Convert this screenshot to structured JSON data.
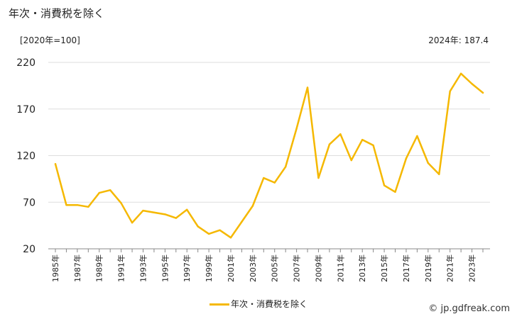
{
  "title": "年次・消費税を除く",
  "unit_label": "[2020年=100]",
  "latest_label": "2024年: 187.4",
  "credit": "© jp.gdfreak.com",
  "colors": {
    "line": "#f5b800",
    "grid": "#dddddd",
    "axis": "#888888"
  },
  "chart_data": {
    "type": "line",
    "title": "年次・消費税を除く",
    "xlabel": "",
    "ylabel": "[2020年=100]",
    "ylim": [
      20,
      220
    ],
    "yticks": [
      20,
      70,
      120,
      170,
      220
    ],
    "grid": true,
    "legend_position": "bottom",
    "x_tick_labels": [
      "1985年",
      "1987年",
      "1989年",
      "1991年",
      "1993年",
      "1995年",
      "1997年",
      "1999年",
      "2001年",
      "2003年",
      "2005年",
      "2007年",
      "2009年",
      "2011年",
      "2013年",
      "2015年",
      "2017年",
      "2019年",
      "2021年",
      "2023年"
    ],
    "x": [
      1985,
      1986,
      1987,
      1988,
      1989,
      1990,
      1991,
      1992,
      1993,
      1994,
      1995,
      1996,
      1997,
      1998,
      1999,
      2000,
      2001,
      2002,
      2003,
      2004,
      2005,
      2006,
      2007,
      2008,
      2009,
      2010,
      2011,
      2012,
      2013,
      2014,
      2015,
      2016,
      2017,
      2018,
      2019,
      2020,
      2021,
      2022,
      2023,
      2024
    ],
    "series": [
      {
        "name": "年次・消費税を除く",
        "values": [
          111,
          67,
          67,
          65,
          80,
          83,
          69,
          48,
          61,
          59,
          57,
          53,
          62,
          44,
          36,
          40,
          32,
          49,
          66,
          96,
          91,
          108,
          149,
          193,
          96,
          132,
          143,
          115,
          137,
          131,
          88,
          81,
          117,
          141,
          112,
          100,
          189,
          208,
          197,
          187.4
        ]
      }
    ]
  }
}
